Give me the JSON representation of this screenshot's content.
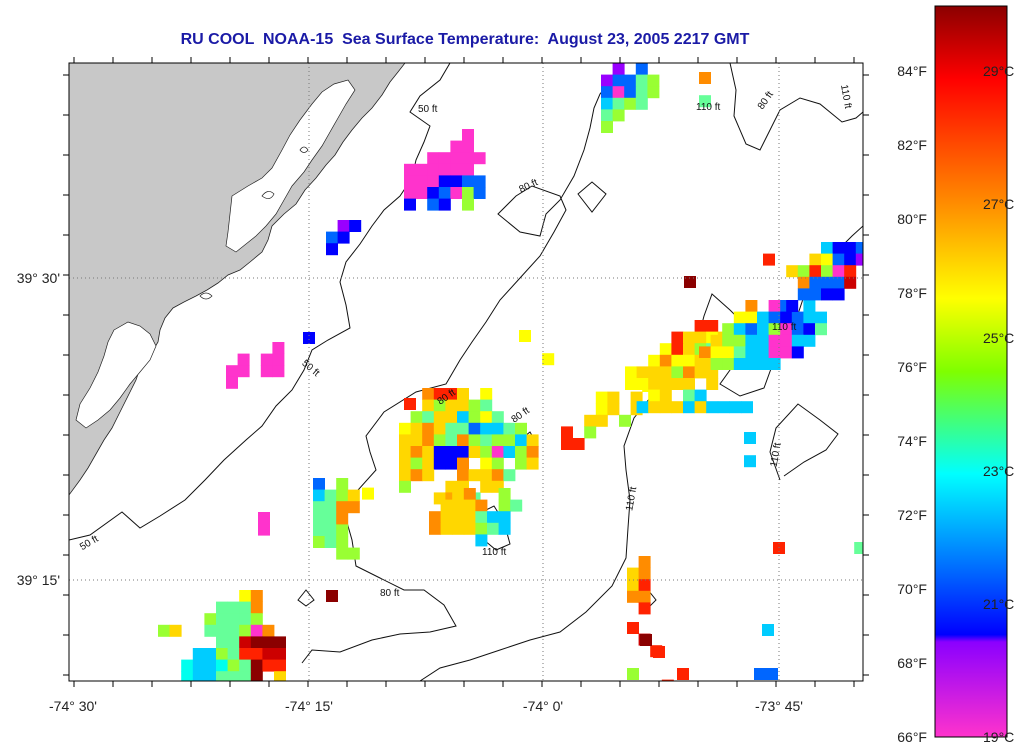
{
  "title": "RU COOL  NOAA-15  Sea Surface Temperature:  August 23, 2005 2217 GMT",
  "map": {
    "x_ticks": [
      "-74° 30'",
      "-74° 15'",
      "-74° 0'",
      "-73° 45'"
    ],
    "y_ticks": [
      "39° 30'",
      "39° 15'"
    ],
    "contour_labels": {
      "c50a": "50 ft",
      "c50b": "50 ft",
      "c50c": "50 ft",
      "c80a": "80 ft",
      "c80b": "80 ft",
      "c80c": "80 ft",
      "c80d": "80 ft",
      "c80e": "80 ft",
      "c110a": "110 ft",
      "c110b": "110 ft",
      "c110c": "110 ft",
      "c110d": "110 ft",
      "c110e": "110 ft",
      "c110f": "110 ft"
    },
    "land_color": "#c8c8c8"
  },
  "colorbar": {
    "f_labels": [
      "84°F",
      "82°F",
      "80°F",
      "78°F",
      "76°F",
      "74°F",
      "72°F",
      "70°F",
      "68°F",
      "66°F"
    ],
    "c_labels": [
      "29°C",
      "27°C",
      "25°C",
      "23°C",
      "21°C",
      "19°C"
    ],
    "colors": [
      "#8b0000",
      "#ff0000",
      "#ff8c00",
      "#ffff00",
      "#7fff00",
      "#00ffff",
      "#0080ff",
      "#0000ff",
      "#8b00ff",
      "#ff33cc"
    ]
  }
}
